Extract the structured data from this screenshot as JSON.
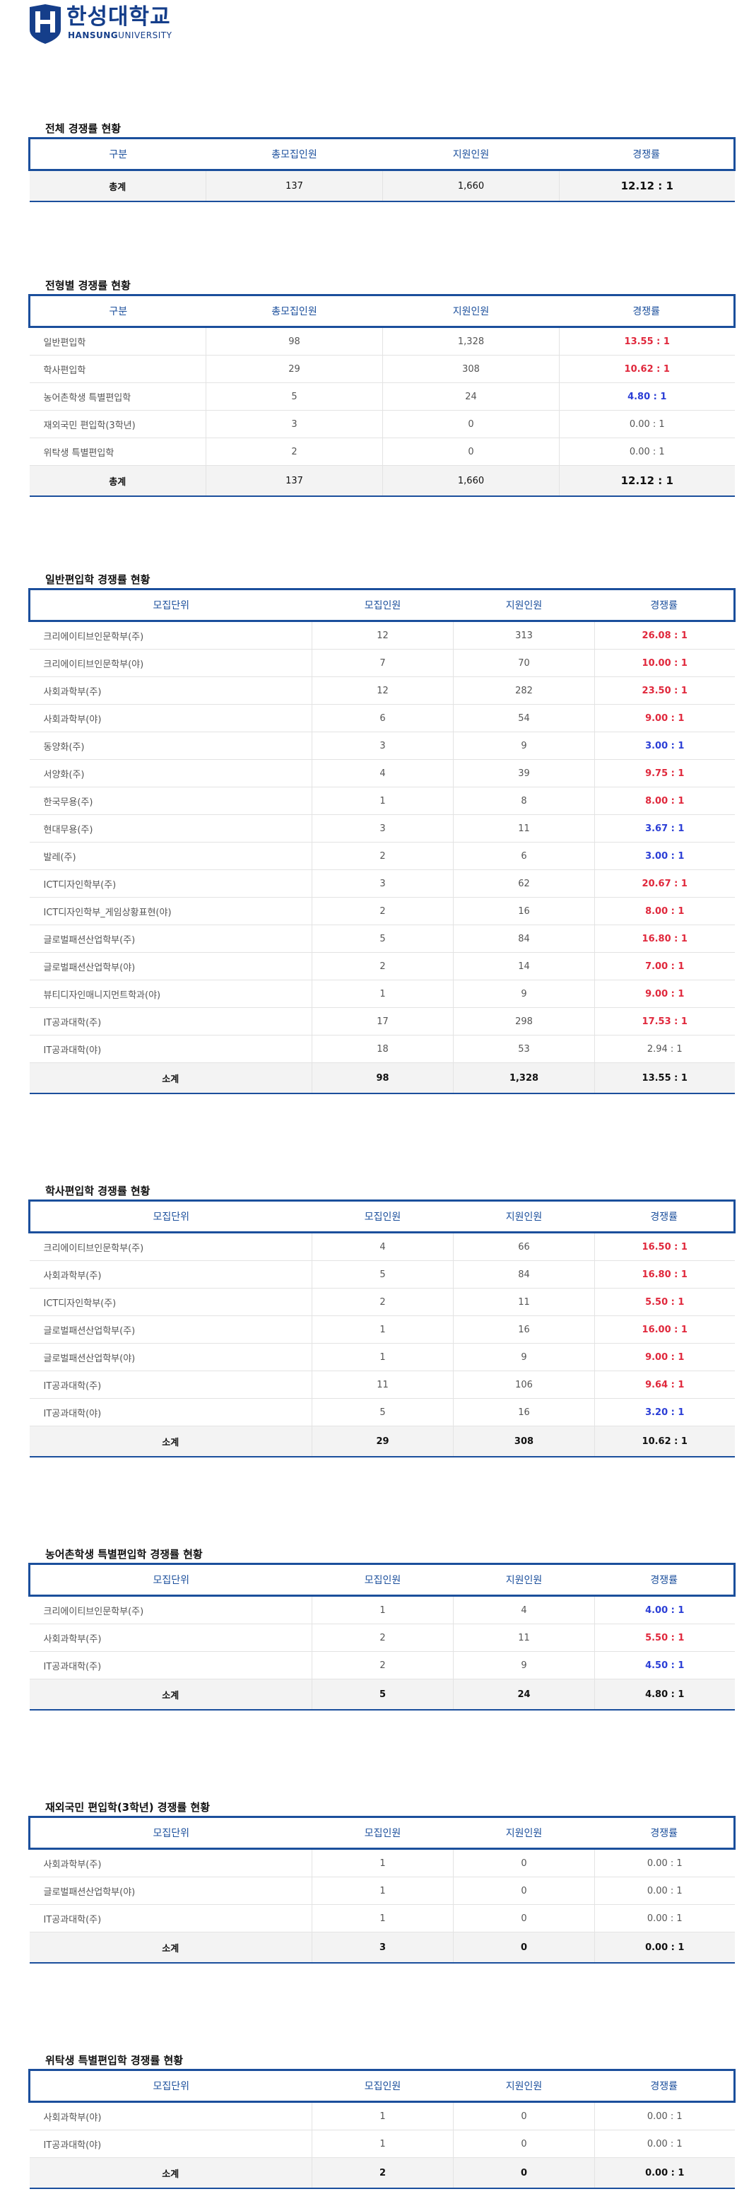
{
  "logo": {
    "name_kr": "한성대학교",
    "name_en_bold": "HANSUNG",
    "name_en_light": "UNIVERSITY",
    "color": "#153e8a"
  },
  "colors": {
    "accent": "#1b4f9c",
    "high": "#e0283c",
    "low": "#2b3ed6"
  },
  "overall": {
    "title": "전체 경쟁률 현황",
    "headers": [
      "구분",
      "총모집인원",
      "지원인원",
      "경쟁률"
    ],
    "total": {
      "label": "총계",
      "quota": "137",
      "applicants": "1,660",
      "rate": "12.12 : 1"
    }
  },
  "by_type": {
    "title": "전형별 경쟁률 현황",
    "headers": [
      "구분",
      "총모집인원",
      "지원인원",
      "경쟁률"
    ],
    "rows": [
      {
        "name": "일반편입학",
        "quota": "98",
        "applicants": "1,328",
        "rate": "13.55 : 1",
        "level": "red"
      },
      {
        "name": "학사편입학",
        "quota": "29",
        "applicants": "308",
        "rate": "10.62 : 1",
        "level": "red"
      },
      {
        "name": "농어촌학생 특별편입학",
        "quota": "5",
        "applicants": "24",
        "rate": "4.80 : 1",
        "level": "blue"
      },
      {
        "name": "재외국민 편입학(3학년)",
        "quota": "3",
        "applicants": "0",
        "rate": "0.00 : 1",
        "level": "plain"
      },
      {
        "name": "위탁생 특별편입학",
        "quota": "2",
        "applicants": "0",
        "rate": "0.00 : 1",
        "level": "plain"
      }
    ],
    "total": {
      "label": "총계",
      "quota": "137",
      "applicants": "1,660",
      "rate": "12.12 : 1"
    }
  },
  "general": {
    "title": "일반편입학 경쟁률 현황",
    "headers": [
      "모집단위",
      "모집인원",
      "지원인원",
      "경쟁률"
    ],
    "rows": [
      {
        "name": "크리에이티브인문학부(주)",
        "quota": "12",
        "applicants": "313",
        "rate": "26.08 : 1",
        "level": "red"
      },
      {
        "name": "크리에이티브인문학부(야)",
        "quota": "7",
        "applicants": "70",
        "rate": "10.00 : 1",
        "level": "red"
      },
      {
        "name": "사회과학부(주)",
        "quota": "12",
        "applicants": "282",
        "rate": "23.50 : 1",
        "level": "red"
      },
      {
        "name": "사회과학부(야)",
        "quota": "6",
        "applicants": "54",
        "rate": "9.00 : 1",
        "level": "red"
      },
      {
        "name": "동양화(주)",
        "quota": "3",
        "applicants": "9",
        "rate": "3.00 : 1",
        "level": "blue"
      },
      {
        "name": "서양화(주)",
        "quota": "4",
        "applicants": "39",
        "rate": "9.75 : 1",
        "level": "red"
      },
      {
        "name": "한국무용(주)",
        "quota": "1",
        "applicants": "8",
        "rate": "8.00 : 1",
        "level": "red"
      },
      {
        "name": "현대무용(주)",
        "quota": "3",
        "applicants": "11",
        "rate": "3.67 : 1",
        "level": "blue"
      },
      {
        "name": "발레(주)",
        "quota": "2",
        "applicants": "6",
        "rate": "3.00 : 1",
        "level": "blue"
      },
      {
        "name": "ICT디자인학부(주)",
        "quota": "3",
        "applicants": "62",
        "rate": "20.67 : 1",
        "level": "red"
      },
      {
        "name": "ICT디자인학부_게임상황표현(야)",
        "quota": "2",
        "applicants": "16",
        "rate": "8.00 : 1",
        "level": "red"
      },
      {
        "name": "글로벌패션산업학부(주)",
        "quota": "5",
        "applicants": "84",
        "rate": "16.80 : 1",
        "level": "red"
      },
      {
        "name": "글로벌패션산업학부(야)",
        "quota": "2",
        "applicants": "14",
        "rate": "7.00 : 1",
        "level": "red"
      },
      {
        "name": "뷰티디자인매니지먼트학과(야)",
        "quota": "1",
        "applicants": "9",
        "rate": "9.00 : 1",
        "level": "red"
      },
      {
        "name": "IT공과대학(주)",
        "quota": "17",
        "applicants": "298",
        "rate": "17.53 : 1",
        "level": "red"
      },
      {
        "name": "IT공과대학(야)",
        "quota": "18",
        "applicants": "53",
        "rate": "2.94 : 1",
        "level": "plain"
      }
    ],
    "total": {
      "label": "소계",
      "quota": "98",
      "applicants": "1,328",
      "rate": "13.55 : 1",
      "level": "red"
    }
  },
  "bachelor": {
    "title": "학사편입학 경쟁률 현황",
    "headers": [
      "모집단위",
      "모집인원",
      "지원인원",
      "경쟁률"
    ],
    "rows": [
      {
        "name": "크리에이티브인문학부(주)",
        "quota": "4",
        "applicants": "66",
        "rate": "16.50 : 1",
        "level": "red"
      },
      {
        "name": "사회과학부(주)",
        "quota": "5",
        "applicants": "84",
        "rate": "16.80 : 1",
        "level": "red"
      },
      {
        "name": "ICT디자인학부(주)",
        "quota": "2",
        "applicants": "11",
        "rate": "5.50 : 1",
        "level": "red"
      },
      {
        "name": "글로벌패션산업학부(주)",
        "quota": "1",
        "applicants": "16",
        "rate": "16.00 : 1",
        "level": "red"
      },
      {
        "name": "글로벌패션산업학부(야)",
        "quota": "1",
        "applicants": "9",
        "rate": "9.00 : 1",
        "level": "red"
      },
      {
        "name": "IT공과대학(주)",
        "quota": "11",
        "applicants": "106",
        "rate": "9.64 : 1",
        "level": "red"
      },
      {
        "name": "IT공과대학(야)",
        "quota": "5",
        "applicants": "16",
        "rate": "3.20 : 1",
        "level": "blue"
      }
    ],
    "total": {
      "label": "소계",
      "quota": "29",
      "applicants": "308",
      "rate": "10.62 : 1",
      "level": "red"
    }
  },
  "rural": {
    "title": "농어촌학생 특별편입학 경쟁률 현황",
    "headers": [
      "모집단위",
      "모집인원",
      "지원인원",
      "경쟁률"
    ],
    "rows": [
      {
        "name": "크리에이티브인문학부(주)",
        "quota": "1",
        "applicants": "4",
        "rate": "4.00 : 1",
        "level": "blue"
      },
      {
        "name": "사회과학부(주)",
        "quota": "2",
        "applicants": "11",
        "rate": "5.50 : 1",
        "level": "red"
      },
      {
        "name": "IT공과대학(주)",
        "quota": "2",
        "applicants": "9",
        "rate": "4.50 : 1",
        "level": "blue"
      }
    ],
    "total": {
      "label": "소계",
      "quota": "5",
      "applicants": "24",
      "rate": "4.80 : 1",
      "level": "blue"
    }
  },
  "overseas": {
    "title": "재외국민 편입학(3학년) 경쟁률 현황",
    "headers": [
      "모집단위",
      "모집인원",
      "지원인원",
      "경쟁률"
    ],
    "rows": [
      {
        "name": "사회과학부(주)",
        "quota": "1",
        "applicants": "0",
        "rate": "0.00 : 1",
        "level": "plain"
      },
      {
        "name": "글로벌패션산업학부(야)",
        "quota": "1",
        "applicants": "0",
        "rate": "0.00 : 1",
        "level": "plain"
      },
      {
        "name": "IT공과대학(주)",
        "quota": "1",
        "applicants": "0",
        "rate": "0.00 : 1",
        "level": "plain"
      }
    ],
    "total": {
      "label": "소계",
      "quota": "3",
      "applicants": "0",
      "rate": "0.00 : 1",
      "level": "dark"
    }
  },
  "consignment": {
    "title": "위탁생 특별편입학 경쟁률 현황",
    "headers": [
      "모집단위",
      "모집인원",
      "지원인원",
      "경쟁률"
    ],
    "rows": [
      {
        "name": "사회과학부(야)",
        "quota": "1",
        "applicants": "0",
        "rate": "0.00 : 1",
        "level": "plain"
      },
      {
        "name": "IT공과대학(야)",
        "quota": "1",
        "applicants": "0",
        "rate": "0.00 : 1",
        "level": "plain"
      }
    ],
    "total": {
      "label": "소계",
      "quota": "2",
      "applicants": "0",
      "rate": "0.00 : 1",
      "level": "dark"
    }
  }
}
